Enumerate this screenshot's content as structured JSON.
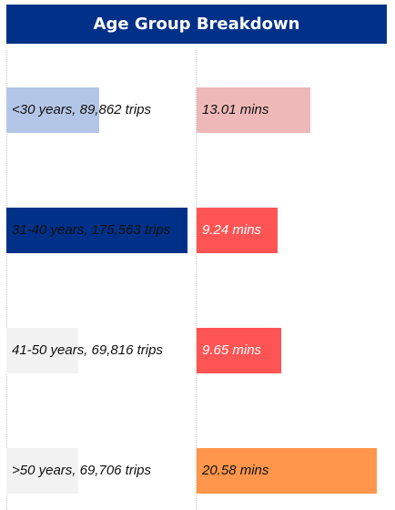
{
  "chart_data": {
    "type": "bar",
    "title": "Age Group Breakdown",
    "categories": [
      "<30 years",
      "31-40 years",
      "41-50 years",
      ">50 years"
    ],
    "series": [
      {
        "values": [
          89862,
          175563,
          69816,
          69706
        ],
        "labels": [
          "<30 years, 89,862 trips",
          "31-40 years, 175,563 trips",
          "41-50 years, 69,816 trips",
          ">50 years, 69,706 trips"
        ],
        "colors": [
          "#b4c6e7",
          "#003087",
          "#f2f2f2",
          "#f2f2f2"
        ]
      },
      {
        "values": [
          13.01,
          9.24,
          9.65,
          20.58
        ],
        "labels": [
          "13.01 mins",
          "9.24 mins",
          "9.65 mins",
          "20.58 mins"
        ],
        "colors": [
          "#eeb8b8",
          "#fe5454",
          "#fe5454",
          "#ff964b"
        ]
      }
    ],
    "xlim_trips": [
      0,
      175563
    ],
    "xlim_mins": [
      0,
      20.58
    ],
    "grid": true,
    "legend": "none"
  }
}
